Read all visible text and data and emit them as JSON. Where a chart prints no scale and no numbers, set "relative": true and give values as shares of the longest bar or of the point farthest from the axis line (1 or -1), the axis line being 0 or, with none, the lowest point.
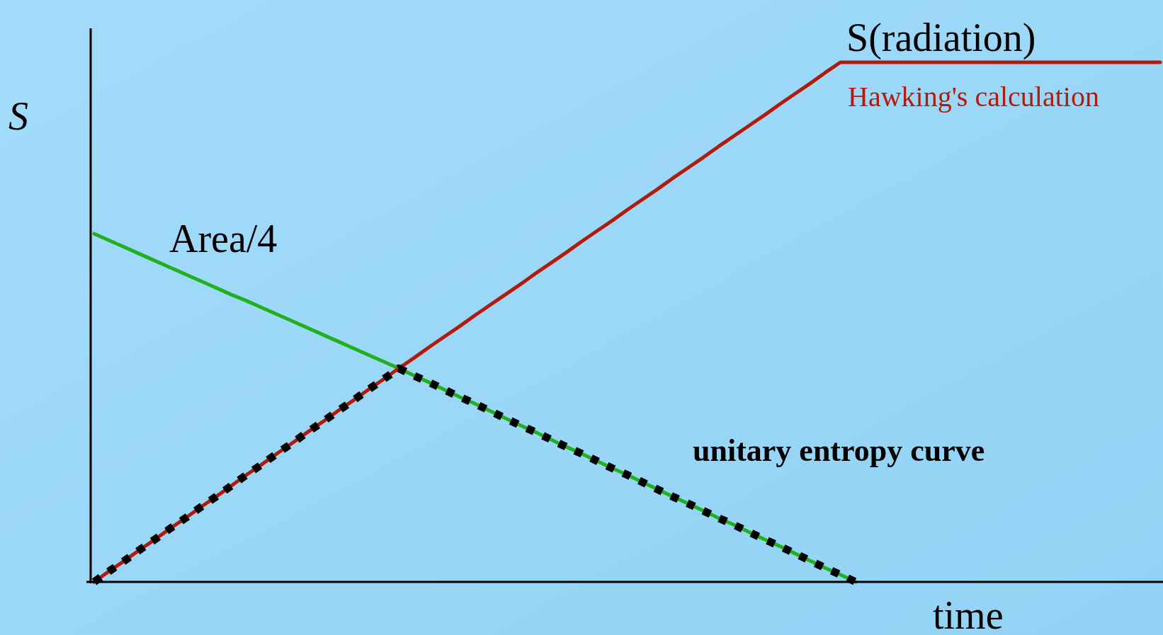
{
  "chart_data": {
    "type": "line",
    "relative": true,
    "xlabel": "time",
    "ylabel": "S",
    "categories": [
      null,
      null,
      null,
      null,
      null,
      null,
      null,
      null,
      null,
      null,
      null,
      null,
      null,
      null,
      null,
      null,
      null,
      null,
      null,
      null,
      null,
      null,
      null,
      null,
      null,
      null,
      null,
      null,
      null,
      null,
      null,
      null,
      null,
      null,
      null,
      null,
      null,
      null,
      null,
      null,
      null,
      null,
      null,
      null,
      null,
      null,
      null,
      null,
      null,
      null,
      null,
      null,
      null,
      null,
      null,
      null,
      null,
      null,
      null,
      null,
      null,
      null,
      null,
      null,
      null,
      null,
      null,
      null,
      null,
      null,
      null
    ],
    "series": [
      {
        "name": "Area/4",
        "color": "#22b01e",
        "line_style": "solid",
        "values": [
          0.67,
          0.657,
          0.644,
          0.631,
          0.618,
          0.605,
          0.592,
          0.579,
          0.566,
          0.553,
          0.541,
          0.528,
          0.515,
          0.502,
          0.489,
          0.476,
          0.463,
          0.45,
          0.437,
          0.424,
          0.411,
          0.397,
          0.384,
          0.37,
          0.356,
          0.343,
          0.329,
          0.315,
          0.301,
          0.288,
          0.274,
          0.26,
          0.247,
          0.233,
          0.219,
          0.206,
          0.192,
          0.178,
          0.164,
          0.151,
          0.137,
          0.123,
          0.11,
          0.096,
          0.082,
          0.069,
          0.055,
          0.041,
          0.027,
          0.014,
          0,
          null,
          null,
          null,
          null,
          null,
          null,
          null,
          null,
          null,
          null,
          null,
          null,
          null,
          null,
          null,
          null,
          null,
          null,
          null,
          null
        ]
      },
      {
        "name": "S(radiation)",
        "color": "#b41a0a",
        "line_style": "solid",
        "values": [
          0,
          0.021,
          0.041,
          0.062,
          0.082,
          0.103,
          0.123,
          0.144,
          0.164,
          0.185,
          0.206,
          0.226,
          0.247,
          0.267,
          0.288,
          0.308,
          0.329,
          0.349,
          0.37,
          0.39,
          0.411,
          0.431,
          0.452,
          0.472,
          0.492,
          0.513,
          0.533,
          0.553,
          0.573,
          0.594,
          0.614,
          0.634,
          0.655,
          0.675,
          0.695,
          0.716,
          0.736,
          0.756,
          0.777,
          0.797,
          0.817,
          0.838,
          0.858,
          0.878,
          0.898,
          0.919,
          0.939,
          0.959,
          0.98,
          1,
          1,
          1,
          1,
          1,
          1,
          1,
          1,
          1,
          1,
          1,
          1,
          1,
          1,
          1,
          1,
          1,
          1,
          1,
          1,
          1,
          1
        ]
      },
      {
        "name": "unitary entropy curve",
        "color": "#000000",
        "line_style": "dotted",
        "values": [
          0,
          0.021,
          0.041,
          0.062,
          0.082,
          0.103,
          0.123,
          0.144,
          0.164,
          0.185,
          0.206,
          0.226,
          0.247,
          0.267,
          0.288,
          0.308,
          0.329,
          0.349,
          0.37,
          0.39,
          0.411,
          0.397,
          0.384,
          0.37,
          0.356,
          0.343,
          0.329,
          0.315,
          0.301,
          0.288,
          0.274,
          0.26,
          0.247,
          0.233,
          0.219,
          0.206,
          0.192,
          0.178,
          0.164,
          0.151,
          0.137,
          0.123,
          0.11,
          0.096,
          0.082,
          0.069,
          0.055,
          0.041,
          0.027,
          0.014,
          0,
          null,
          null,
          null,
          null,
          null,
          null,
          null,
          null,
          null,
          null,
          null,
          null,
          null,
          null,
          null,
          null,
          null,
          null,
          null,
          null
        ]
      }
    ],
    "annotations": [
      "Hawking's calculation"
    ]
  }
}
